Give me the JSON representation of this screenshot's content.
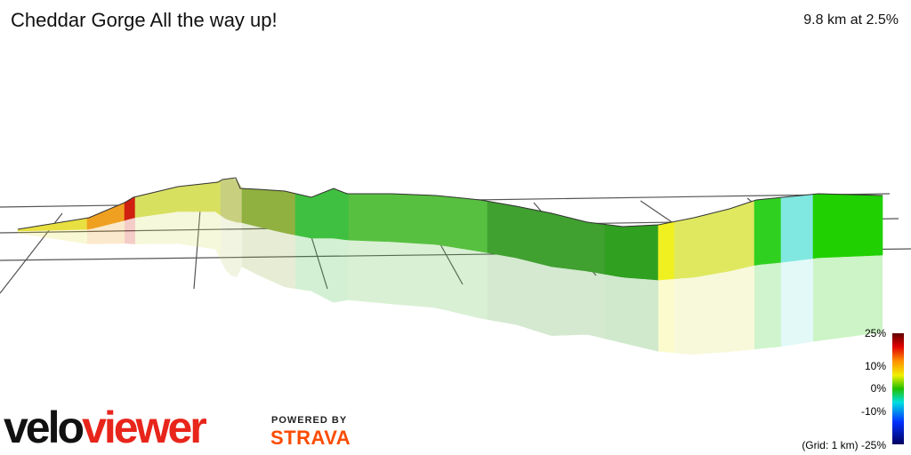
{
  "header": {
    "title": "Cheddar Gorge All the way up!",
    "stats": "9.8 km at 2.5%"
  },
  "legend": {
    "labels": [
      "25%",
      "10%",
      "0%",
      "-10%",
      "(Grid: 1 km) -25%"
    ]
  },
  "branding": {
    "logo_dark": "velo",
    "logo_red": "viewer",
    "powered_by": "POWERED BY",
    "strava": "STRAVA"
  }
}
